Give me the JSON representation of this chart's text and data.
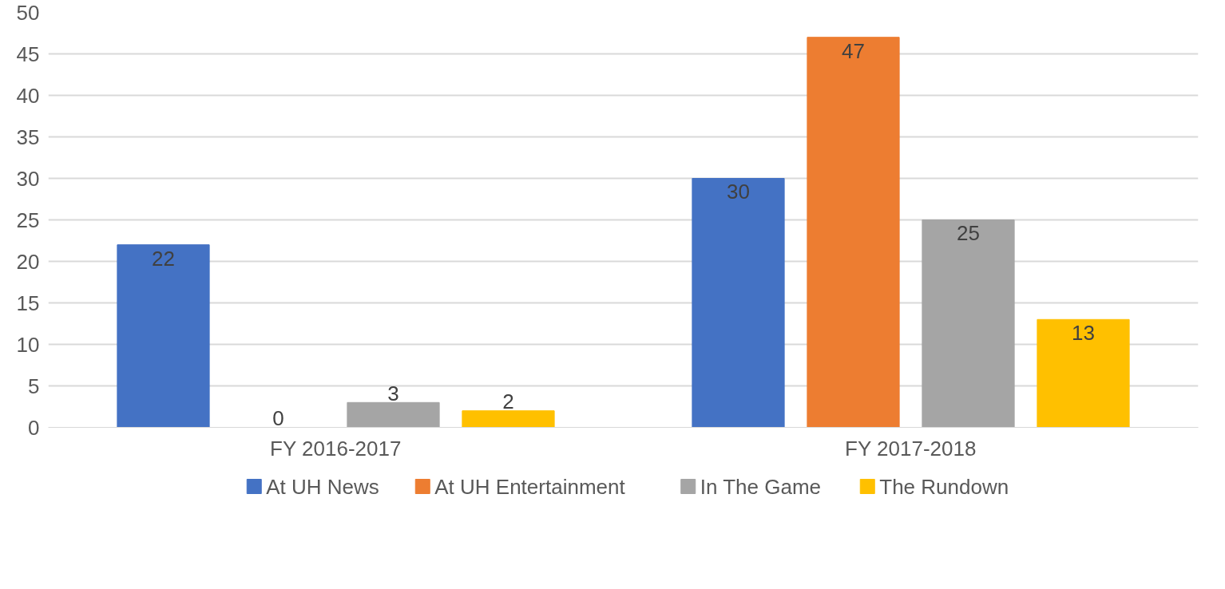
{
  "chart_data": {
    "type": "bar",
    "categories": [
      "FY 2016-2017",
      "FY 2017-2018"
    ],
    "series": [
      {
        "name": "At UH News",
        "color": "#4472c4",
        "values": [
          22,
          30
        ]
      },
      {
        "name": "At UH Entertainment",
        "color": "#ed7d31",
        "values": [
          0,
          47
        ]
      },
      {
        "name": "In The Game",
        "color": "#a5a5a5",
        "values": [
          3,
          25
        ]
      },
      {
        "name": "The Rundown",
        "color": "#ffc000",
        "values": [
          2,
          13
        ]
      }
    ],
    "ylim": [
      0,
      50
    ],
    "yticks": [
      0,
      5,
      10,
      15,
      20,
      25,
      30,
      35,
      40,
      45,
      50
    ],
    "grid": "y",
    "legend": "bottom",
    "data_labels": true
  }
}
